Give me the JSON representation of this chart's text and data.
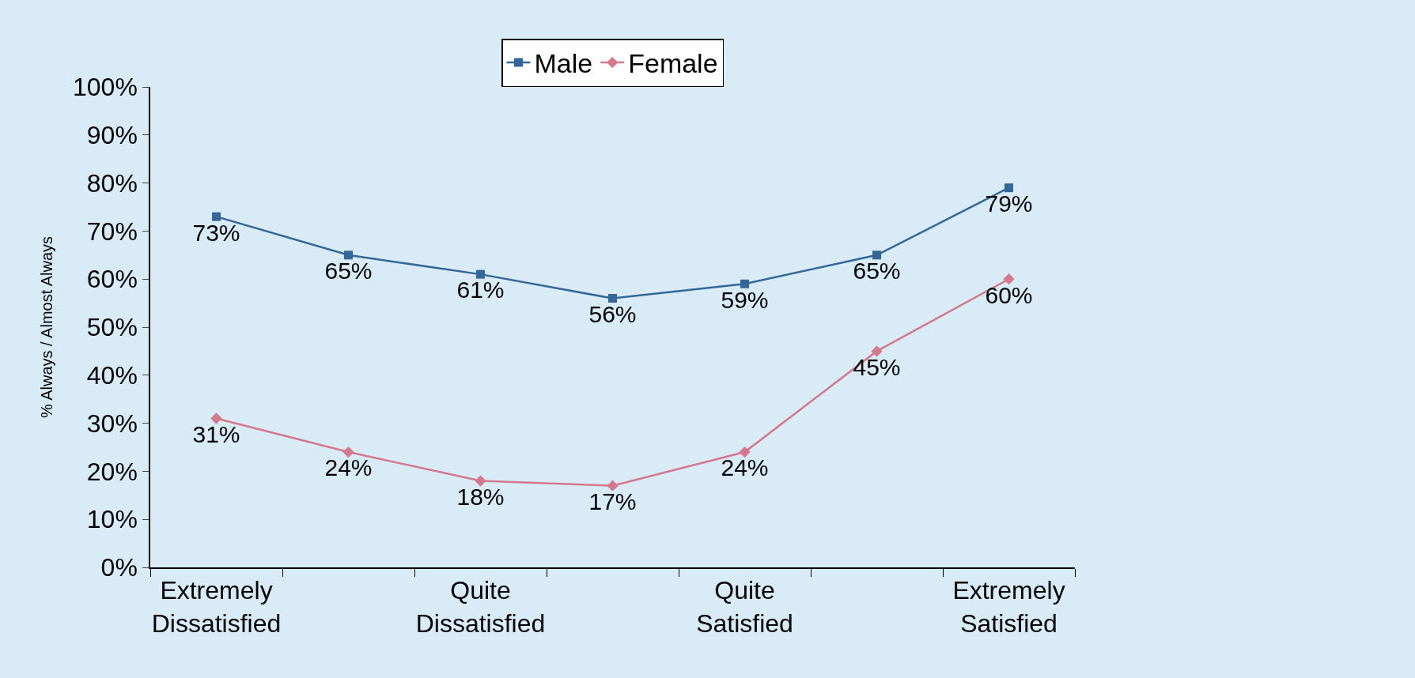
{
  "chart_data": {
    "type": "line",
    "ylabel": "% Always / Almost Always",
    "categories": [
      "Extremely Dissatisfied",
      null,
      "Quite Dissatisfied",
      null,
      "Quite Satisfied",
      null,
      "Extremely Satisfied"
    ],
    "series": [
      {
        "name": "Male",
        "color": "#336699",
        "marker": "square",
        "values": [
          73,
          65,
          61,
          56,
          59,
          65,
          79
        ],
        "value_labels": [
          "73%",
          "65%",
          "61%",
          "56%",
          "59%",
          "65%",
          "79%"
        ]
      },
      {
        "name": "Female",
        "color": "#d4788c",
        "marker": "diamond",
        "values": [
          31,
          24,
          18,
          17,
          24,
          45,
          60
        ],
        "value_labels": [
          "31%",
          "24%",
          "18%",
          "17%",
          "24%",
          "45%",
          "60%"
        ]
      }
    ],
    "ylim": [
      0,
      100
    ],
    "yticks": [
      {
        "value": 0,
        "label": "0%"
      },
      {
        "value": 10,
        "label": "10%"
      },
      {
        "value": 20,
        "label": "20%"
      },
      {
        "value": 30,
        "label": "30%"
      },
      {
        "value": 40,
        "label": "40%"
      },
      {
        "value": 50,
        "label": "50%"
      },
      {
        "value": 60,
        "label": "60%"
      },
      {
        "value": 70,
        "label": "70%"
      },
      {
        "value": 80,
        "label": "80%"
      },
      {
        "value": 90,
        "label": "90%"
      },
      {
        "value": 100,
        "label": "100%"
      }
    ],
    "grid": false,
    "legend": "top",
    "line_style": "solid"
  }
}
